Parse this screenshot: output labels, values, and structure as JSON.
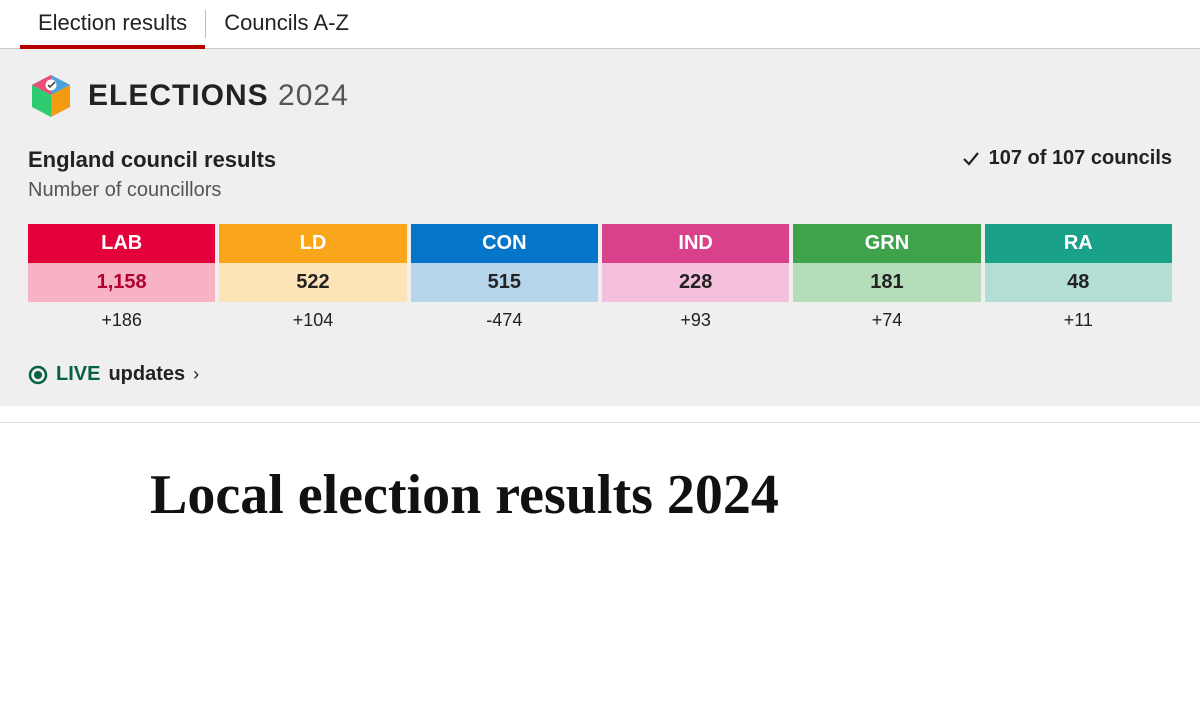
{
  "tabs": {
    "items": [
      {
        "label": "Election results",
        "active": true
      },
      {
        "label": "Councils A-Z",
        "active": false
      }
    ]
  },
  "banner": {
    "title_bold": "ELECTIONS",
    "title_year": "2024",
    "heading": "England council results",
    "subheading": "Number of councillors",
    "progress": "107 of 107 councils"
  },
  "parties": [
    {
      "code": "LAB",
      "seats": "1,158",
      "change": "+186",
      "code_bg": "#e4003b",
      "seats_bg": "#f7b3c3",
      "seats_color": "#b20030"
    },
    {
      "code": "LD",
      "seats": "522",
      "change": "+104",
      "code_bg": "#faa61a",
      "seats_bg": "#fde3b8",
      "seats_color": "#222222"
    },
    {
      "code": "CON",
      "seats": "515",
      "change": "-474",
      "code_bg": "#0575c9",
      "seats_bg": "#b6d4ea",
      "seats_color": "#222222"
    },
    {
      "code": "IND",
      "seats": "228",
      "change": "+93",
      "code_bg": "#d9418c",
      "seats_bg": "#f4c0dc",
      "seats_color": "#222222"
    },
    {
      "code": "GRN",
      "seats": "181",
      "change": "+74",
      "code_bg": "#3ea34a",
      "seats_bg": "#b6ddba",
      "seats_color": "#222222"
    },
    {
      "code": "RA",
      "seats": "48",
      "change": "+11",
      "code_bg": "#1aa18a",
      "seats_bg": "#b2ded5",
      "seats_color": "#222222"
    }
  ],
  "live": {
    "badge": "LIVE",
    "text": "updates",
    "color": "#066043"
  },
  "article": {
    "title": "Local election results 2024"
  }
}
